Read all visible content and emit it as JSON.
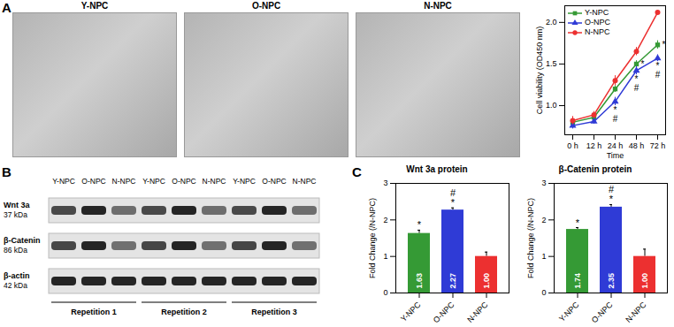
{
  "chart_data": [
    {
      "type": "line",
      "x": [
        "0 h",
        "12 h",
        "24 h",
        "48 h",
        "72 h"
      ],
      "xlabel": "Time",
      "ylabel": "Cell viability (OD450 nm)",
      "ylim": [
        0.65,
        2.2
      ],
      "yticks": [
        {
          "value": 1,
          "label": "1.0"
        },
        {
          "value": 1.5,
          "label": "1.5"
        },
        {
          "value": 2,
          "label": "2.0"
        }
      ],
      "grid": false,
      "legend": "upper left",
      "series": [
        {
          "name": "Y-NPC",
          "color": "#359a35",
          "marker": "square",
          "values": [
            0.8,
            0.86,
            1.2,
            1.5,
            1.73
          ],
          "errors": [
            0.04,
            0.03,
            0.04,
            0.04,
            0.05
          ],
          "significance": [
            null,
            null,
            null,
            "*",
            "*"
          ]
        },
        {
          "name": "O-NPC",
          "color": "#2f3bd6",
          "marker": "triangle",
          "values": [
            0.76,
            0.81,
            1.05,
            1.42,
            1.57
          ],
          "errors": [
            0.04,
            0.03,
            0.05,
            0.05,
            0.04
          ],
          "significance": [
            null,
            null,
            "*\n#",
            "*\n#",
            "*\n#"
          ]
        },
        {
          "name": "N-NPC",
          "color": "#ec3030",
          "marker": "circle",
          "values": [
            0.82,
            0.89,
            1.3,
            1.65,
            2.12
          ],
          "errors": [
            0.05,
            0.04,
            0.06,
            0.05,
            0.02
          ],
          "significance": [
            null,
            null,
            null,
            null,
            null
          ]
        }
      ]
    },
    {
      "type": "bar",
      "title": "Wnt 3a protein",
      "ylabel": "Fold Change (/N-NPC)",
      "categories": [
        "Y-NPC",
        "O-NPC",
        "N-NPC"
      ],
      "values": [
        1.63,
        2.27,
        1.0
      ],
      "value_labels": [
        "1.63",
        "2.27",
        "1.00"
      ],
      "errors": [
        0.09,
        0.06,
        0.12
      ],
      "significance": [
        "*",
        "#\n*",
        null
      ],
      "colors": [
        "#359a35",
        "#2f3bd6",
        "#ec3030"
      ],
      "ylim": [
        0,
        3
      ],
      "yticks": [
        0,
        1,
        2,
        3
      ],
      "data_labels": true,
      "grid": false
    },
    {
      "type": "bar",
      "title": "β-Catenin protein",
      "ylabel": "Fold Change (/N-NPC)",
      "categories": [
        "Y-NPC",
        "O-NPC",
        "N-NPC"
      ],
      "values": [
        1.74,
        2.35,
        1.0
      ],
      "value_labels": [
        "1.74",
        "2.35",
        "1.00"
      ],
      "errors": [
        0.05,
        0.07,
        0.2
      ],
      "significance": [
        "*",
        "#\n*",
        null
      ],
      "colors": [
        "#359a35",
        "#2f3bd6",
        "#ec3030"
      ],
      "ylim": [
        0,
        3
      ],
      "yticks": [
        0,
        1,
        2,
        3
      ],
      "data_labels": true,
      "grid": false
    }
  ],
  "figure": {
    "panel_labels": [
      "A",
      "B",
      "C"
    ],
    "images": [
      "Y-NPC",
      "O-NPC",
      "N-NPC"
    ],
    "blot": {
      "lanes": [
        "Y-NPC",
        "O-NPC",
        "N-NPC"
      ],
      "groups": [
        "Repetition 1",
        "Repetition 2",
        "Repetition 3"
      ],
      "rows": [
        {
          "name": "Wnt 3a",
          "size": "37 kDa"
        },
        {
          "name": "β-Catenin",
          "size": "86 kDa"
        },
        {
          "name": "β-actin",
          "size": "42 kDa"
        }
      ]
    }
  }
}
